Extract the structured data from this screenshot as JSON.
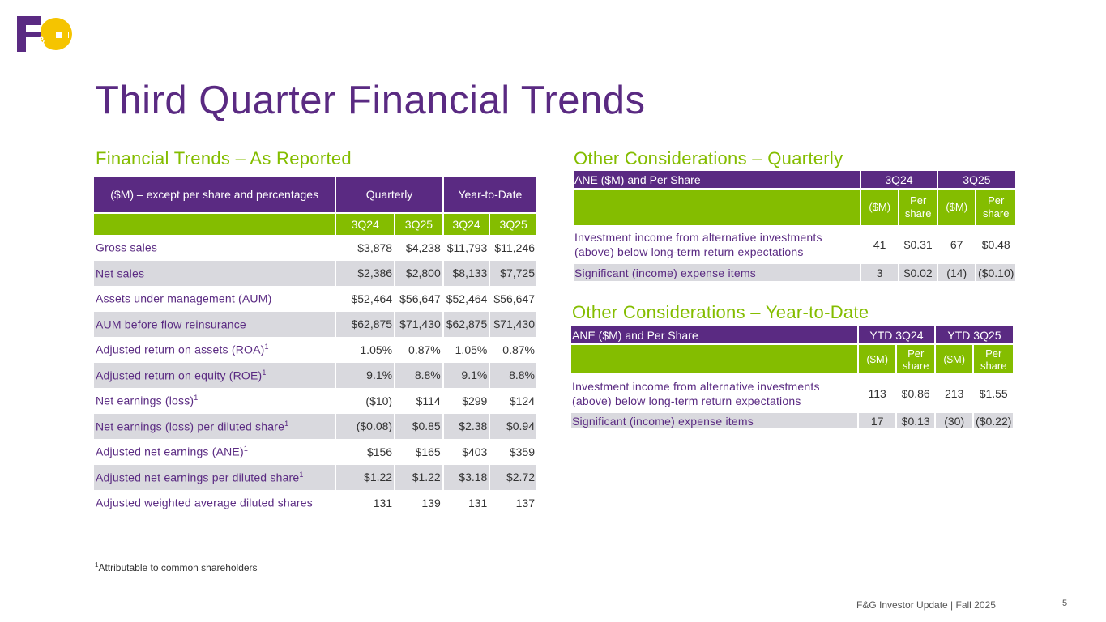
{
  "brand": {
    "logo_text": "F&G",
    "purple": "#5a2a82",
    "green": "#84bd00",
    "yellow": "#f5c400"
  },
  "title": "Third Quarter Financial Trends",
  "main": {
    "section_title": "Financial Trends – As Reported",
    "header_label": "($M) – except per share and percentages",
    "group_quarterly": "Quarterly",
    "group_ytd": "Year-to-Date",
    "cols": [
      "3Q24",
      "3Q25",
      "3Q24",
      "3Q25"
    ],
    "rows": [
      {
        "label": "Gross sales",
        "sup": "",
        "v": [
          "$3,878",
          "$4,238",
          "$11,793",
          "$11,246"
        ]
      },
      {
        "label": "Net sales",
        "sup": "",
        "v": [
          "$2,386",
          "$2,800",
          "$8,133",
          "$7,725"
        ]
      },
      {
        "label": "Assets under management (AUM)",
        "sup": "",
        "v": [
          "$52,464",
          "$56,647",
          "$52,464",
          "$56,647"
        ]
      },
      {
        "label": "AUM before flow reinsurance",
        "sup": "",
        "v": [
          "$62,875",
          "$71,430",
          "$62,875",
          "$71,430"
        ]
      },
      {
        "label": "Adjusted return on assets (ROA)",
        "sup": "1",
        "v": [
          "1.05%",
          "0.87%",
          "1.05%",
          "0.87%"
        ]
      },
      {
        "label": "Adjusted return on equity (ROE)",
        "sup": "1",
        "v": [
          "9.1%",
          "8.8%",
          "9.1%",
          "8.8%"
        ]
      },
      {
        "label": "Net earnings (loss)",
        "sup": "1",
        "v": [
          "($10)",
          "$114",
          "$299",
          "$124"
        ]
      },
      {
        "label": "Net earnings (loss) per diluted share",
        "sup": "1",
        "v": [
          "($0.08)",
          "$0.85",
          "$2.38",
          "$0.94"
        ]
      },
      {
        "label": "Adjusted net earnings (ANE)",
        "sup": "1",
        "v": [
          "$156",
          "$165",
          "$403",
          "$359"
        ]
      },
      {
        "label": "Adjusted net earnings per diluted share",
        "sup": "1",
        "v": [
          "$1.22",
          "$1.22",
          "$3.18",
          "$2.72"
        ]
      },
      {
        "label": "Adjusted weighted average diluted shares",
        "sup": "",
        "v": [
          "131",
          "139",
          "131",
          "137"
        ]
      }
    ]
  },
  "quarterly": {
    "section_title": "Other Considerations – Quarterly",
    "header_label": "ANE ($M) and Per Share",
    "group_a": "3Q24",
    "group_b": "3Q25",
    "subcols": [
      "($M)",
      "Per share",
      "($M)",
      "Per share"
    ],
    "rows": [
      {
        "label": "Investment income from alternative investments (above) below long-term return expectations",
        "v": [
          "41",
          "$0.31",
          "67",
          "$0.48"
        ]
      },
      {
        "label": "Significant (income) expense items",
        "v": [
          "3",
          "$0.02",
          "(14)",
          "($0.10)"
        ]
      }
    ]
  },
  "ytd": {
    "section_title": "Other Considerations – Year-to-Date",
    "header_label": "ANE ($M) and Per Share",
    "group_a": "YTD 3Q24",
    "group_b": "YTD 3Q25",
    "subcols": [
      "($M)",
      "Per share",
      "($M)",
      "Per share"
    ],
    "rows": [
      {
        "label": "Investment income from alternative investments (above) below long-term return expectations",
        "v": [
          "113",
          "$0.86",
          "213",
          "$1.55"
        ]
      },
      {
        "label": "Significant (income) expense items",
        "v": [
          "17",
          "$0.13",
          "(30)",
          "($0.22)"
        ]
      }
    ]
  },
  "footnote": {
    "sup": "1",
    "text": "Attributable to common shareholders"
  },
  "footer": {
    "text": "F&G Investor Update |  Fall 2025",
    "page": "5"
  }
}
